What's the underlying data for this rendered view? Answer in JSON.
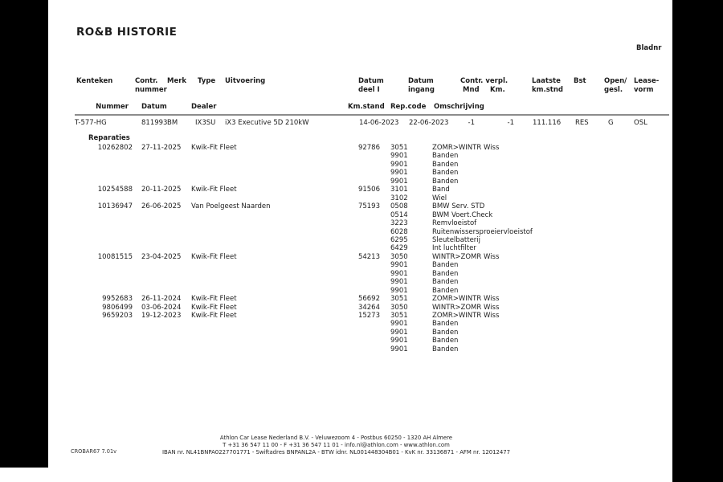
{
  "title": "RO&B HISTORIE",
  "page_label": "Bladnr",
  "colors": {
    "backdrop": "#000000",
    "page_background": "#ffffff",
    "text": "#1c1c1c",
    "rule": "#8c8c8c"
  },
  "header1": {
    "kenteken": "Kenteken",
    "contr_nummer": "Contr.\nnummer",
    "merk": "Merk",
    "type": "Type",
    "uitvoering": "Uitvoering",
    "datum_deel1": "Datum\ndeel I",
    "datum_ingang": "Datum\ningang",
    "contr_verpl": "Contr. verpl.",
    "mnd": "Mnd",
    "km": "Km.",
    "laatste_kmstnd": "Laatste\nkm.stnd",
    "bst": "Bst",
    "open_gesl": "Open/\ngesl.",
    "leasevorm": "Lease-\nvorm"
  },
  "header2": {
    "nummer": "Nummer",
    "datum": "Datum",
    "dealer": "Dealer",
    "kmstand": "Km.stand",
    "repcode": "Rep.code",
    "omschrijving": "Omschrijving"
  },
  "contract": {
    "kenteken": "T-577-HG",
    "contr_nummer": "811993",
    "merk": "BM",
    "type": "IX3SU",
    "uitvoering": "iX3 Executive 5D 210kW",
    "datum_deel1": "14-06-2023",
    "datum_ingang": "22-06-2023",
    "mnd": "-1",
    "km": "-1",
    "laatste_kmstnd": "111.116",
    "bst": "RES",
    "open_gesl": "G",
    "leasevorm": "OSL"
  },
  "repairs_section_label": "Reparaties",
  "repair_lines": [
    {
      "nummer": "10262802",
      "datum": "27-11-2025",
      "dealer": "Kwik-Fit Fleet",
      "km": "92786",
      "code": "3051",
      "oms": "ZOMR>WINTR Wiss"
    },
    {
      "code": "9901",
      "oms": "Banden"
    },
    {
      "code": "9901",
      "oms": "Banden"
    },
    {
      "code": "9901",
      "oms": "Banden"
    },
    {
      "code": "9901",
      "oms": "Banden"
    },
    {
      "nummer": "10254588",
      "datum": "20-11-2025",
      "dealer": "Kwik-Fit Fleet",
      "km": "91506",
      "code": "3101",
      "oms": "Band"
    },
    {
      "code": "3102",
      "oms": "Wiel"
    },
    {
      "nummer": "10136947",
      "datum": "26-06-2025",
      "dealer": "Van Poelgeest Naarden",
      "km": "75193",
      "code": "0508",
      "oms": "BMW Serv. STD"
    },
    {
      "code": "0514",
      "oms": "BWM Voert.Check"
    },
    {
      "code": "3223",
      "oms": "Remvloeistof"
    },
    {
      "code": "6028",
      "oms": "Ruitenwissersproeiervloeistof"
    },
    {
      "code": "6295",
      "oms": "Sleutelbatterij"
    },
    {
      "code": "6429",
      "oms": "Int luchtfilter"
    },
    {
      "nummer": "10081515",
      "datum": "23-04-2025",
      "dealer": "Kwik-Fit Fleet",
      "km": "54213",
      "code": "3050",
      "oms": "WINTR>ZOMR Wiss"
    },
    {
      "code": "9901",
      "oms": "Banden"
    },
    {
      "code": "9901",
      "oms": "Banden"
    },
    {
      "code": "9901",
      "oms": "Banden"
    },
    {
      "code": "9901",
      "oms": "Banden"
    },
    {
      "nummer": "9952683",
      "datum": "26-11-2024",
      "dealer": "Kwik-Fit Fleet",
      "km": "56692",
      "code": "3051",
      "oms": "ZOMR>WINTR Wiss"
    },
    {
      "nummer": "9806499",
      "datum": "03-06-2024",
      "dealer": "Kwik-Fit Fleet",
      "km": "34264",
      "code": "3050",
      "oms": "WINTR>ZOMR Wiss"
    },
    {
      "nummer": "9659203",
      "datum": "19-12-2023",
      "dealer": "Kwik-Fit Fleet",
      "km": "15273",
      "code": "3051",
      "oms": "ZOMR>WINTR Wiss"
    },
    {
      "code": "9901",
      "oms": "Banden"
    },
    {
      "code": "9901",
      "oms": "Banden"
    },
    {
      "code": "9901",
      "oms": "Banden"
    },
    {
      "code": "9901",
      "oms": "Banden"
    }
  ],
  "footer": {
    "line1": "Athlon Car Lease Nederland B.V. - Veluwezoom 4 - Postbus 60250 - 1320 AH  Almere",
    "line2": "T +31 36 547 11 00 - F +31 36 547 11 01 - info.nl@athlon.com - www.athlon.com",
    "line3": "IBAN nr. NL41BNPA0227701771 - Swiftadres BNPANL2A - BTW idnr. NL001448304B01 - KvK nr. 33136871 - AFM nr. 12012477",
    "version": "CROBAR67 7.01v"
  }
}
